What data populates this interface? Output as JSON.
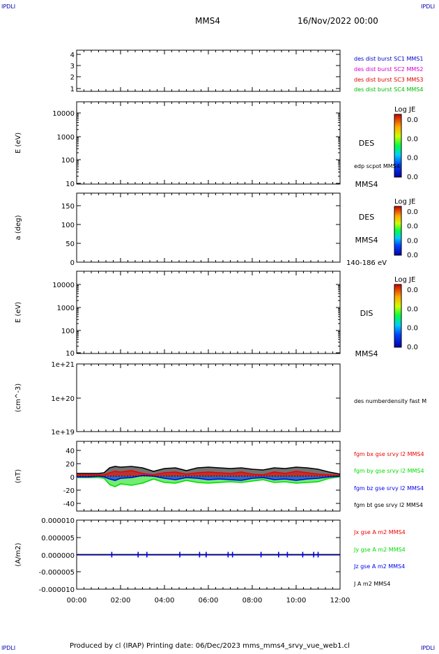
{
  "header": {
    "corner_tl": "IPDLI",
    "corner_tr": "IPDLI",
    "corner_bl": "IPDLI",
    "corner_br": "IPDLI",
    "spacecraft": "MMS4",
    "datetime": "16/Nov/2022 00:00"
  },
  "footer": {
    "credits": "Produced by cl (IRAP)   Printing date: 06/Dec/2023   mms_mms4_srvy_vue_web1.cl"
  },
  "colors": {
    "mms1": "#0000cc",
    "mms2": "#cc00cc",
    "mms3": "#dd0000",
    "mms4": "#00bb00",
    "bx": "#ee0000",
    "by": "#00dd00",
    "bz": "#0000ee",
    "bt": "#000000"
  },
  "chart_data": [
    {
      "type": "line",
      "panel": "burst",
      "ylabel": "",
      "yticks": [
        "1",
        "2",
        "3",
        "4"
      ],
      "ylim": [
        0.7,
        4.4
      ],
      "legend": [
        {
          "name": "des dist burst SC1 MMS1",
          "color": "#0000cc"
        },
        {
          "name": "des dist burst SC2 MMS2",
          "color": "#cc00cc"
        },
        {
          "name": "des dist burst SC3 MMS3",
          "color": "#dd0000"
        },
        {
          "name": "des dist burst SC4 MMS4",
          "color": "#00bb00"
        }
      ]
    },
    {
      "type": "heatmap",
      "panel": "des-energy",
      "ylabel": "E (eV)",
      "yscale": "log",
      "yticks": [
        "10",
        "100",
        "1000",
        "10000"
      ],
      "ylim": [
        10,
        25000
      ],
      "labels": [
        "DES",
        "MMS4"
      ],
      "overlay_label": "edp scpot MMS4",
      "colorbar": {
        "title": "Log JE",
        "ticks": [
          "0.0",
          "0.0",
          "0.0",
          "0.0"
        ]
      }
    },
    {
      "type": "heatmap",
      "panel": "des-pitch",
      "ylabel": "a (deg)",
      "yticks": [
        "0",
        "50",
        "100",
        "150"
      ],
      "ylim": [
        0,
        180
      ],
      "labels": [
        "DES",
        "MMS4",
        "140-186 eV"
      ],
      "colorbar": {
        "title": "Log JE",
        "ticks": [
          "0.0",
          "0.0",
          "0.0",
          "0.0"
        ]
      }
    },
    {
      "type": "heatmap",
      "panel": "dis-energy",
      "ylabel": "E (eV)",
      "yscale": "log",
      "yticks": [
        "10",
        "100",
        "1000",
        "10000"
      ],
      "ylim": [
        10,
        25000
      ],
      "labels": [
        "DIS",
        "MMS4"
      ],
      "colorbar": {
        "title": "Log JE",
        "ticks": [
          "0.0",
          "0.0",
          "0.0",
          "0.0"
        ]
      }
    },
    {
      "type": "line",
      "panel": "density",
      "ylabel": "(cm^-3)",
      "yscale": "log",
      "yticks": [
        "1e+19",
        "1e+20",
        "1e+21"
      ],
      "ylim": [
        1e+19,
        1e+21
      ],
      "legend": [
        {
          "name": "des numberdensity fast M",
          "color": "#000000"
        }
      ]
    },
    {
      "type": "line",
      "panel": "fgm",
      "ylabel": "(nT)",
      "yticks": [
        "-40",
        "-20",
        "0",
        "20",
        "40"
      ],
      "ylim": [
        -50,
        50
      ],
      "legend": [
        {
          "name": "fgm bx gse srvy l2 MMS4",
          "color": "#ee0000"
        },
        {
          "name": "fgm by gse srvy l2 MMS4",
          "color": "#00dd00"
        },
        {
          "name": "fgm bz gse srvy l2 MMS4",
          "color": "#0000ee"
        },
        {
          "name": "fgm bt gse srvy l2 MMS4",
          "color": "#000000"
        }
      ],
      "x_hours": [
        0,
        0.5,
        1,
        1.25,
        1.5,
        1.75,
        2,
        2.5,
        3,
        3.5,
        4,
        4.5,
        5,
        5.5,
        6,
        6.5,
        7,
        7.5,
        8,
        8.5,
        9,
        9.5,
        10,
        10.5,
        11,
        11.5,
        12
      ],
      "bt": [
        4,
        4,
        4,
        5,
        12,
        14,
        13,
        14,
        12,
        7,
        11,
        12,
        8,
        12,
        13,
        12,
        11,
        12,
        10,
        9,
        12,
        11,
        13,
        12,
        10,
        6,
        3
      ],
      "bx": [
        2,
        2,
        2,
        2,
        5,
        7,
        6,
        8,
        4,
        2,
        5,
        6,
        3,
        5,
        6,
        5,
        4,
        6,
        3,
        2,
        6,
        4,
        7,
        5,
        3,
        2,
        1
      ],
      "by": [
        -2,
        -2,
        -2,
        -3,
        -12,
        -15,
        -11,
        -13,
        -10,
        -4,
        -9,
        -10,
        -6,
        -9,
        -10,
        -9,
        -8,
        -9,
        -7,
        -5,
        -9,
        -8,
        -10,
        -9,
        -8,
        -3,
        -1
      ],
      "bz": [
        -1,
        -1,
        0,
        -1,
        -4,
        -6,
        -3,
        -2,
        1,
        0,
        -3,
        -5,
        -2,
        -3,
        -5,
        -4,
        -5,
        -6,
        -3,
        -2,
        -5,
        -4,
        -6,
        -4,
        -3,
        -1,
        0
      ]
    },
    {
      "type": "line",
      "panel": "current",
      "ylabel": "(A/m2)",
      "yticks": [
        "-0.000010",
        "-0.000005",
        "0.000000",
        "0.000005",
        "0.000010"
      ],
      "ylim": [
        -1e-05,
        1e-05
      ],
      "xlabel": "",
      "xticks": [
        "00:00",
        "02:00",
        "04:00",
        "06:00",
        "08:00",
        "10:00",
        "12:00"
      ],
      "xlim_hours": [
        0,
        12
      ],
      "legend": [
        {
          "name": "Jx gse A m2 MMS4",
          "color": "#ee0000"
        },
        {
          "name": "Jy gse A m2 MMS4",
          "color": "#00dd00"
        },
        {
          "name": "Jz gse A m2 MMS4",
          "color": "#0000ee"
        },
        {
          "name": "J A m2 MMS4",
          "color": "#000000"
        }
      ],
      "spike_hours": [
        1.6,
        2.8,
        3.2,
        4.7,
        5.6,
        5.9,
        6.9,
        7.1,
        8.4,
        9.2,
        9.6,
        10.3,
        10.8,
        11.0
      ]
    }
  ]
}
